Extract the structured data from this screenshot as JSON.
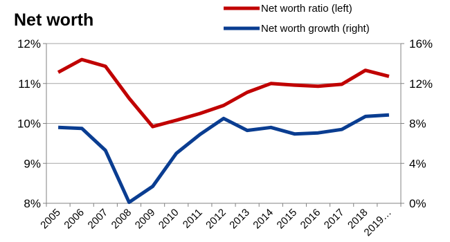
{
  "chart_data": {
    "type": "line",
    "title": "Net worth",
    "categories": [
      "2005",
      "2006",
      "2007",
      "2008",
      "2009",
      "2010",
      "2011",
      "2012",
      "2013",
      "2014",
      "2015",
      "2016",
      "2017",
      "2018",
      "2019…"
    ],
    "y_left": {
      "ylim": [
        8,
        12
      ],
      "ticks": [
        "8%",
        "9%",
        "10%",
        "11%",
        "12%"
      ]
    },
    "y_right": {
      "ylim": [
        0,
        16
      ],
      "ticks": [
        "0%",
        "4%",
        "8%",
        "12%",
        "16%"
      ]
    },
    "series": [
      {
        "name": "Net worth ratio (left)",
        "axis": "left",
        "color": "#C00000",
        "values": [
          11.28,
          11.6,
          11.43,
          10.63,
          9.92,
          10.08,
          10.25,
          10.45,
          10.78,
          11.0,
          10.96,
          10.93,
          10.98,
          11.33,
          11.18
        ]
      },
      {
        "name": "Net worth growth (right)",
        "axis": "right",
        "color": "#0A3D91",
        "values": [
          7.6,
          7.5,
          5.3,
          0.1,
          1.7,
          5.0,
          6.9,
          8.5,
          7.3,
          7.6,
          6.95,
          7.05,
          7.4,
          8.7,
          8.85
        ]
      }
    ],
    "grid": "horizontal",
    "legend": "top-right"
  }
}
